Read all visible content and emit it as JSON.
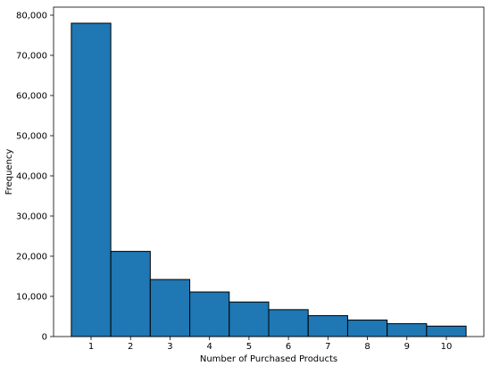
{
  "chart_data": {
    "type": "bar",
    "title": "",
    "xlabel": "Number of Purchased Products",
    "ylabel": "Frequency",
    "categories": [
      "1",
      "2",
      "3",
      "4",
      "5",
      "6",
      "7",
      "8",
      "9",
      "10"
    ],
    "values": [
      78000,
      21200,
      14200,
      11100,
      8600,
      6700,
      5200,
      4100,
      3200,
      2600
    ],
    "ylim": [
      0,
      82000
    ],
    "xlim": [
      0.5,
      10.5
    ],
    "y_ticks": [
      0,
      10000,
      20000,
      30000,
      40000,
      50000,
      60000,
      70000,
      80000
    ],
    "y_tick_labels": [
      "0",
      "10,000",
      "20,000",
      "30,000",
      "40,000",
      "50,000",
      "60,000",
      "70,000",
      "80,000"
    ],
    "x_ticks": [
      1,
      2,
      3,
      4,
      5,
      6,
      7,
      8,
      9,
      10
    ],
    "x_tick_labels": [
      "1",
      "2",
      "3",
      "4",
      "5",
      "6",
      "7",
      "8",
      "9",
      "10"
    ],
    "bar_color": "#1f77b4",
    "edge_color": "#000000",
    "grid": false,
    "legend": "none"
  }
}
